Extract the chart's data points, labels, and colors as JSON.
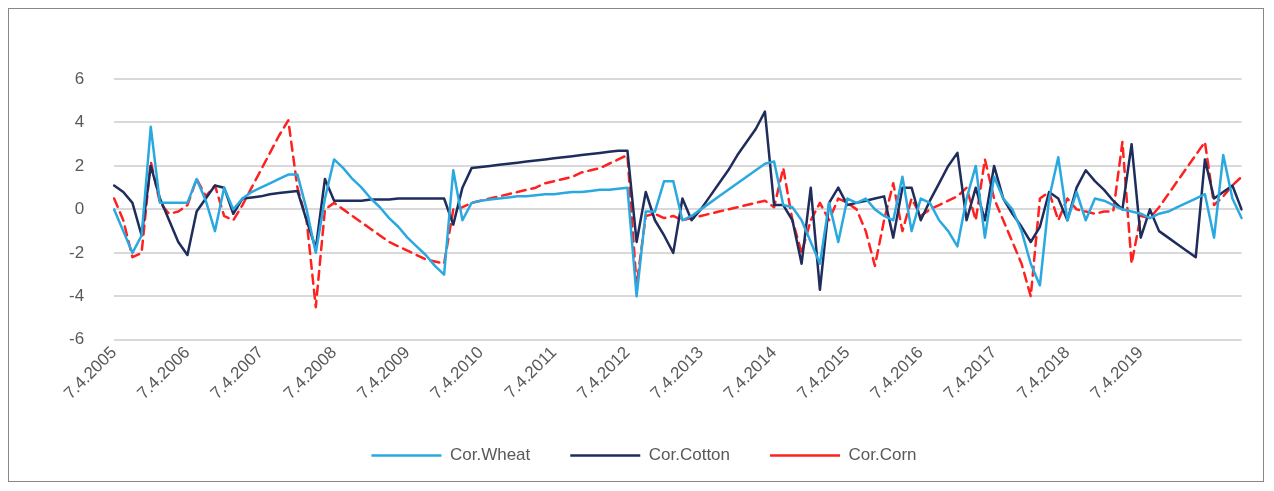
{
  "chart_data": {
    "type": "line",
    "categories": [
      "7.4.2005",
      null,
      null,
      null,
      null,
      null,
      null,
      null,
      "7.4.2006",
      null,
      null,
      null,
      null,
      null,
      null,
      null,
      "7.4.2007",
      null,
      null,
      null,
      null,
      null,
      null,
      null,
      "7.4.2008",
      null,
      null,
      null,
      null,
      null,
      null,
      null,
      "7.4.2009",
      null,
      null,
      null,
      null,
      null,
      null,
      null,
      "7.4.2010",
      null,
      null,
      null,
      null,
      null,
      null,
      null,
      "7.4.2011",
      null,
      null,
      null,
      null,
      null,
      null,
      null,
      "7.4.2012",
      null,
      null,
      null,
      null,
      null,
      null,
      null,
      "7.4.2013",
      null,
      null,
      null,
      null,
      null,
      null,
      null,
      "7.4.2014",
      null,
      null,
      null,
      null,
      null,
      null,
      null,
      "7.4.2015",
      null,
      null,
      null,
      null,
      null,
      null,
      null,
      "7.4.2016",
      null,
      null,
      null,
      null,
      null,
      null,
      null,
      "7.4.2017",
      null,
      null,
      null,
      null,
      null,
      null,
      null,
      "7.4.2018",
      null,
      null,
      null,
      null,
      null,
      null,
      null,
      "7.4.2019",
      null,
      null,
      null,
      null,
      null,
      null,
      null,
      null,
      null,
      null,
      null
    ],
    "series": [
      {
        "name": "Cor.Wheat",
        "color": "#29a9e0",
        "values": [
          0,
          -1,
          -2,
          -1.2,
          3.8,
          0.3,
          0.3,
          0.3,
          0.3,
          1.4,
          0.4,
          -1,
          1,
          0,
          0.5,
          0.8,
          1,
          1.2,
          1.4,
          1.6,
          1.6,
          0,
          -2,
          0.5,
          2.3,
          1.9,
          1.4,
          1,
          0.5,
          0.1,
          -0.4,
          -0.8,
          -1.3,
          -1.7,
          -2.1,
          -2.6,
          -3,
          1.8,
          -0.5,
          0.3,
          0.4,
          0.45,
          0.5,
          0.55,
          0.6,
          0.6,
          0.65,
          0.7,
          0.7,
          0.75,
          0.8,
          0.8,
          0.85,
          0.9,
          0.9,
          0.95,
          1,
          -4,
          -0.1,
          -0.1,
          1.3,
          1.3,
          -0.5,
          -0.3,
          0,
          0.3,
          0.6,
          0.9,
          1.2,
          1.5,
          1.8,
          2.1,
          2.2,
          0.2,
          0.1,
          -0.5,
          -1.5,
          -2.5,
          0.3,
          -1.5,
          0.5,
          0.3,
          0.5,
          0,
          -0.3,
          -0.5,
          1.5,
          -1,
          0.5,
          0.3,
          -0.5,
          -1,
          -1.7,
          0.5,
          2,
          -1.3,
          1.5,
          0.5,
          0,
          -1,
          -2.5,
          -3.5,
          0.5,
          2.4,
          -0.5,
          0.8,
          -0.5,
          0.5,
          0.4,
          0.2,
          0,
          -0.1,
          -0.2,
          -0.4,
          -0.2,
          -0.1,
          0.1,
          0.3,
          0.5,
          0.7,
          -1.3,
          2.5,
          0.5,
          -0.4
        ]
      },
      {
        "name": "Cor.Cotton",
        "color": "#1f2d5c",
        "values": [
          1.1,
          0.8,
          0.3,
          -1.2,
          2,
          0.5,
          -0.5,
          -1.5,
          -2.1,
          -0.1,
          0.5,
          1.1,
          1,
          -0.2,
          0.5,
          0.55,
          0.6,
          0.7,
          0.75,
          0.8,
          0.85,
          -0.5,
          -1.8,
          1.4,
          0.4,
          0.4,
          0.4,
          0.4,
          0.45,
          0.45,
          0.45,
          0.5,
          0.5,
          0.5,
          0.5,
          0.5,
          0.5,
          -0.7,
          1,
          1.9,
          1.95,
          2,
          2.05,
          2.1,
          2.15,
          2.2,
          2.25,
          2.3,
          2.35,
          2.4,
          2.45,
          2.5,
          2.55,
          2.6,
          2.65,
          2.7,
          2.7,
          -1.5,
          0.8,
          -0.5,
          -1.2,
          -2,
          0.5,
          -0.5,
          0,
          0.6,
          1.2,
          1.8,
          2.5,
          3.1,
          3.7,
          4.5,
          0.2,
          0.2,
          -0.5,
          -2.5,
          1,
          -3.7,
          0.3,
          1,
          0.2,
          0.3,
          0.4,
          0.5,
          0.6,
          -1.3,
          1,
          1,
          -0.5,
          0.4,
          1.2,
          2,
          2.6,
          -0.5,
          1,
          -0.5,
          2,
          0.5,
          -0.2,
          -0.8,
          -1.5,
          -0.8,
          0.8,
          0.5,
          -0.5,
          1,
          1.8,
          1.3,
          0.9,
          0.4,
          0,
          3,
          -1.3,
          0,
          -1,
          -1.3,
          -1.6,
          -1.9,
          -2.2,
          2.3,
          0.5,
          0.8,
          1.1,
          0
        ]
      },
      {
        "name": "Cor.Corn",
        "color": "#ff2020",
        "line_style": "dashed",
        "values": [
          0.5,
          -0.5,
          -2.2,
          -2,
          2.2,
          0.3,
          -0.2,
          -0.1,
          0.2,
          1.4,
          0.6,
          1.1,
          -0.3,
          -0.5,
          0.2,
          1,
          1.8,
          2.6,
          3.4,
          4.1,
          1,
          -0.5,
          -4.5,
          0,
          0.3,
          0,
          -0.3,
          -0.6,
          -0.9,
          -1.2,
          -1.5,
          -1.7,
          -1.9,
          -2.1,
          -2.3,
          -2.4,
          -2.5,
          0,
          0.1,
          0.3,
          0.4,
          0.5,
          0.6,
          0.7,
          0.8,
          0.9,
          1,
          1.2,
          1.3,
          1.4,
          1.5,
          1.7,
          1.8,
          1.9,
          2.1,
          2.3,
          2.5,
          -3.5,
          -0.3,
          -0.2,
          -0.4,
          -0.3,
          -0.5,
          -0.4,
          -0.3,
          -0.2,
          -0.1,
          0,
          0.1,
          0.2,
          0.3,
          0.4,
          0.1,
          1.9,
          -0.5,
          -2,
          -0.5,
          0.3,
          -0.5,
          0.5,
          0.3,
          0,
          -1,
          -2.6,
          -0.5,
          1.2,
          -1,
          0.5,
          -0.3,
          0,
          0.2,
          0.4,
          0.6,
          1,
          -0.5,
          2.3,
          0.5,
          -0.5,
          -1.5,
          -2.5,
          -4,
          0.5,
          0.8,
          -0.5,
          0.5,
          0,
          -0.1,
          -0.2,
          -0.1,
          -0.1,
          3.1,
          -2.5,
          -0.3,
          -0.4,
          0.1,
          0.7,
          1.3,
          1.9,
          2.5,
          3.1,
          0.2,
          0.6,
          1.1,
          1.5
        ]
      }
    ],
    "ylim": [
      -6,
      6
    ],
    "yticks": [
      -6,
      -4,
      -2,
      0,
      2,
      4,
      6
    ],
    "grid": "y",
    "legend": "bottom",
    "marker": "none",
    "line_style": "solid"
  }
}
